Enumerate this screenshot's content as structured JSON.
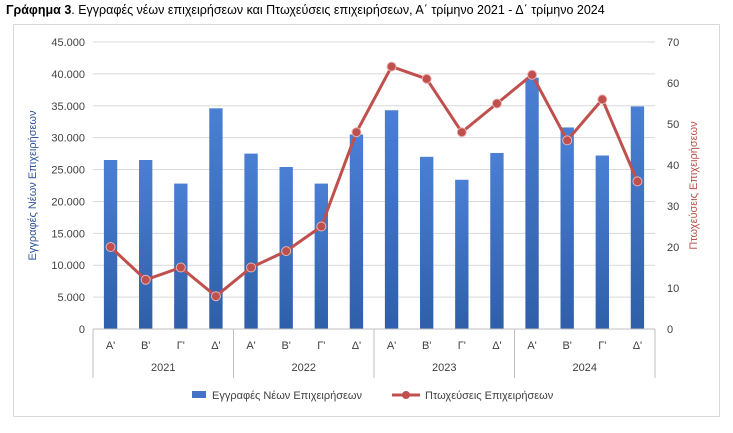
{
  "title": {
    "bold": "Γράφημα 3",
    "rest": ". Εγγραφές νέων επιχειρήσεων και Πτωχεύσεις επιχειρήσεων, Α΄ τρίμηνο 2021 - Δ΄ τρίμηνο 2024"
  },
  "chart_data": {
    "type": "bar",
    "categories": [
      "Α'",
      "Β'",
      "Γ'",
      "Δ'",
      "Α'",
      "Β'",
      "Γ'",
      "Δ'",
      "Α'",
      "Β'",
      "Γ'",
      "Δ'",
      "Α'",
      "Β'",
      "Γ'",
      "Δ'"
    ],
    "year_groups": [
      "2021",
      "2022",
      "2023",
      "2024"
    ],
    "series": [
      {
        "name": "Εγγραφές Νέων Επιχειρήσεων",
        "type": "bar",
        "axis": "left",
        "color": "#4472c4",
        "values": [
          26500,
          26500,
          22800,
          34600,
          27500,
          25400,
          22800,
          30500,
          34300,
          27000,
          23400,
          27600,
          39400,
          31600,
          27200,
          34900
        ]
      },
      {
        "name": "Πτωχεύσεις Επιχειρήσεων",
        "type": "line",
        "axis": "right",
        "color": "#c0504d",
        "values": [
          20,
          12,
          15,
          8,
          15,
          19,
          25,
          48,
          64,
          61,
          48,
          55,
          62,
          46,
          56,
          36
        ]
      }
    ],
    "ylabel": "Εγγραφές Νέων Επιχειρήσεων",
    "y2label": "Πτωχεύσεις Επιχειρήσεων",
    "ylim": [
      0,
      45000
    ],
    "y2lim": [
      0,
      70
    ],
    "yticks": [
      "0",
      "5.000",
      "10.000",
      "15.000",
      "20.000",
      "25.000",
      "30.000",
      "35.000",
      "40.000",
      "45.000"
    ],
    "y2ticks": [
      "0",
      "10",
      "20",
      "30",
      "40",
      "50",
      "60",
      "70"
    ],
    "grid": true,
    "legend": "bottom"
  }
}
